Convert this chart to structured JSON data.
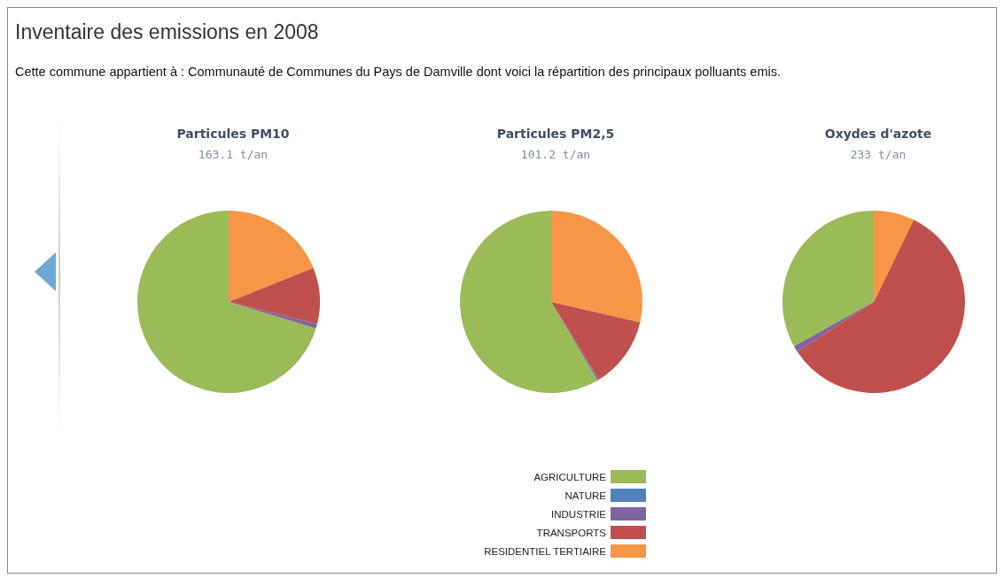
{
  "chart_data": {
    "type": "pie",
    "title": "Inventaire des emissions en 2008",
    "subtitle": "Cette commune appartient à : Communauté de Communes du Pays de Damville dont voici la répartition des principaux polluants emis.",
    "categories": [
      "AGRICULTURE",
      "NATURE",
      "INDUSTRIE",
      "TRANSPORTS",
      "RESIDENTIEL TERTIAIRE"
    ],
    "colors": [
      "#9bbb59",
      "#4f81bd",
      "#8064a2",
      "#c0504d",
      "#f79646"
    ],
    "series": [
      {
        "name": "Particules PM10",
        "values": [
          70.3,
          0,
          0.8,
          10,
          18.9
        ]
      },
      {
        "name": "Particules PM2,5",
        "values": [
          58.5,
          0,
          0.3,
          12.6,
          28.6
        ]
      },
      {
        "name": "Oxydes d'azote",
        "values": [
          33.1,
          0,
          1.1,
          58.6,
          7.2
        ]
      }
    ],
    "annotations": [
      "163.1 t/an",
      "101.2 t/an",
      "233 t/an"
    ],
    "legend": "bottom"
  }
}
